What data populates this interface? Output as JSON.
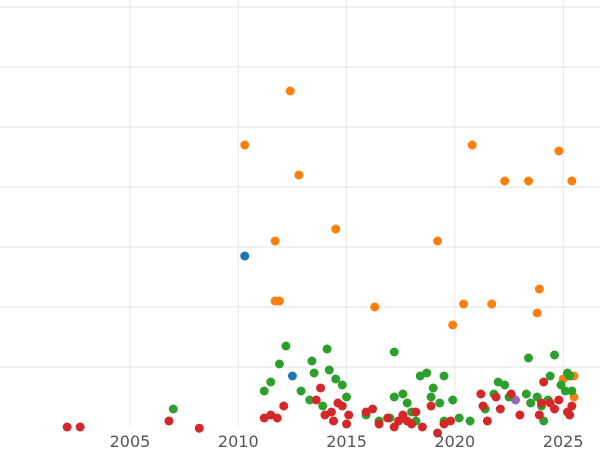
{
  "chart_data": {
    "type": "scatter",
    "title": "",
    "xlabel": "",
    "ylabel": "",
    "xlim": [
      1999.0,
      2026.7
    ],
    "ylim": [
      0,
      7
    ],
    "x_ticks": [
      2005,
      2010,
      2015,
      2020,
      2025
    ],
    "x_tick_labels": [
      "2005",
      "2010",
      "2015",
      "2020",
      "2025"
    ],
    "y_gridlines": [
      1,
      2,
      3,
      4,
      5,
      6,
      7
    ],
    "grid": true,
    "legend": "none",
    "series": [
      {
        "color": "#ff7f0e",
        "points": [
          [
            2010.3,
            4.7
          ],
          [
            2012.4,
            5.6
          ],
          [
            2012.8,
            4.2
          ],
          [
            2011.7,
            3.1
          ],
          [
            2011.7,
            2.1
          ],
          [
            2011.9,
            2.1
          ],
          [
            2014.5,
            3.3
          ],
          [
            2016.3,
            2.0
          ],
          [
            2019.2,
            3.1
          ],
          [
            2019.9,
            1.7
          ],
          [
            2020.4,
            2.05
          ],
          [
            2020.8,
            4.7
          ],
          [
            2021.7,
            2.05
          ],
          [
            2022.3,
            4.1
          ],
          [
            2023.4,
            4.1
          ],
          [
            2023.8,
            1.9
          ],
          [
            2023.9,
            2.3
          ],
          [
            2024.8,
            4.6
          ],
          [
            2025.4,
            4.1
          ],
          [
            2025.0,
            0.8
          ],
          [
            2025.5,
            0.5
          ],
          [
            2025.5,
            0.85
          ]
        ]
      },
      {
        "color": "#1f77b4",
        "points": [
          [
            2010.3,
            2.85
          ],
          [
            2012.5,
            0.85
          ]
        ]
      },
      {
        "color": "#9467bd",
        "points": [
          [
            2022.8,
            0.45
          ]
        ]
      },
      {
        "color": "#2ca02c",
        "points": [
          [
            2007.0,
            0.3
          ],
          [
            2011.2,
            0.6
          ],
          [
            2011.5,
            0.75
          ],
          [
            2011.9,
            1.05
          ],
          [
            2012.2,
            1.35
          ],
          [
            2012.9,
            0.6
          ],
          [
            2013.3,
            0.45
          ],
          [
            2013.4,
            1.1
          ],
          [
            2013.5,
            0.9
          ],
          [
            2013.9,
            0.35
          ],
          [
            2014.1,
            1.3
          ],
          [
            2014.2,
            0.95
          ],
          [
            2014.5,
            0.8
          ],
          [
            2014.8,
            0.7
          ],
          [
            2015.0,
            0.5
          ],
          [
            2015.9,
            0.2
          ],
          [
            2016.5,
            0.1
          ],
          [
            2017.0,
            0.15
          ],
          [
            2017.2,
            1.25
          ],
          [
            2017.2,
            0.5
          ],
          [
            2017.6,
            0.55
          ],
          [
            2017.8,
            0.4
          ],
          [
            2018.0,
            0.25
          ],
          [
            2018.2,
            0.1
          ],
          [
            2018.4,
            0.85
          ],
          [
            2018.7,
            0.9
          ],
          [
            2018.9,
            0.5
          ],
          [
            2019.0,
            0.65
          ],
          [
            2019.3,
            0.4
          ],
          [
            2019.5,
            0.1
          ],
          [
            2019.5,
            0.85
          ],
          [
            2019.9,
            0.45
          ],
          [
            2020.2,
            0.15
          ],
          [
            2020.7,
            0.1
          ],
          [
            2021.4,
            0.3
          ],
          [
            2021.8,
            0.55
          ],
          [
            2022.0,
            0.75
          ],
          [
            2022.3,
            0.7
          ],
          [
            2022.5,
            0.5
          ],
          [
            2023.3,
            0.55
          ],
          [
            2023.5,
            0.4
          ],
          [
            2023.4,
            1.15
          ],
          [
            2023.8,
            0.5
          ],
          [
            2024.0,
            0.35
          ],
          [
            2024.1,
            0.1
          ],
          [
            2024.3,
            0.45
          ],
          [
            2024.4,
            0.85
          ],
          [
            2024.6,
            1.2
          ],
          [
            2024.9,
            0.7
          ],
          [
            2025.1,
            0.6
          ],
          [
            2025.2,
            0.9
          ],
          [
            2025.3,
            0.85
          ],
          [
            2025.4,
            0.6
          ]
        ]
      },
      {
        "color": "#d62728",
        "points": [
          [
            2002.1,
            0.0
          ],
          [
            2002.7,
            0.0
          ],
          [
            2006.8,
            0.1
          ],
          [
            2008.2,
            -0.02
          ],
          [
            2011.2,
            0.15
          ],
          [
            2011.5,
            0.2
          ],
          [
            2011.8,
            0.15
          ],
          [
            2012.1,
            0.35
          ],
          [
            2013.6,
            0.45
          ],
          [
            2013.8,
            0.65
          ],
          [
            2014.0,
            0.2
          ],
          [
            2014.3,
            0.25
          ],
          [
            2014.4,
            0.1
          ],
          [
            2014.6,
            0.4
          ],
          [
            2014.8,
            0.35
          ],
          [
            2015.0,
            0.05
          ],
          [
            2015.1,
            0.2
          ],
          [
            2015.9,
            0.25
          ],
          [
            2016.2,
            0.3
          ],
          [
            2016.5,
            0.05
          ],
          [
            2016.9,
            0.15
          ],
          [
            2017.2,
            0.0
          ],
          [
            2017.4,
            0.1
          ],
          [
            2017.6,
            0.2
          ],
          [
            2017.8,
            0.1
          ],
          [
            2018.0,
            0.05
          ],
          [
            2018.2,
            0.25
          ],
          [
            2018.5,
            0.0
          ],
          [
            2018.9,
            0.35
          ],
          [
            2019.2,
            -0.1
          ],
          [
            2019.5,
            0.05
          ],
          [
            2019.8,
            0.1
          ],
          [
            2021.2,
            0.55
          ],
          [
            2021.3,
            0.35
          ],
          [
            2021.5,
            0.1
          ],
          [
            2021.9,
            0.5
          ],
          [
            2022.1,
            0.3
          ],
          [
            2022.6,
            0.55
          ],
          [
            2023.0,
            0.2
          ],
          [
            2023.9,
            0.2
          ],
          [
            2024.0,
            0.4
          ],
          [
            2024.1,
            0.75
          ],
          [
            2024.4,
            0.4
          ],
          [
            2024.6,
            0.3
          ],
          [
            2024.8,
            0.45
          ],
          [
            2025.2,
            0.25
          ],
          [
            2025.3,
            0.2
          ],
          [
            2025.4,
            0.35
          ]
        ]
      }
    ]
  }
}
